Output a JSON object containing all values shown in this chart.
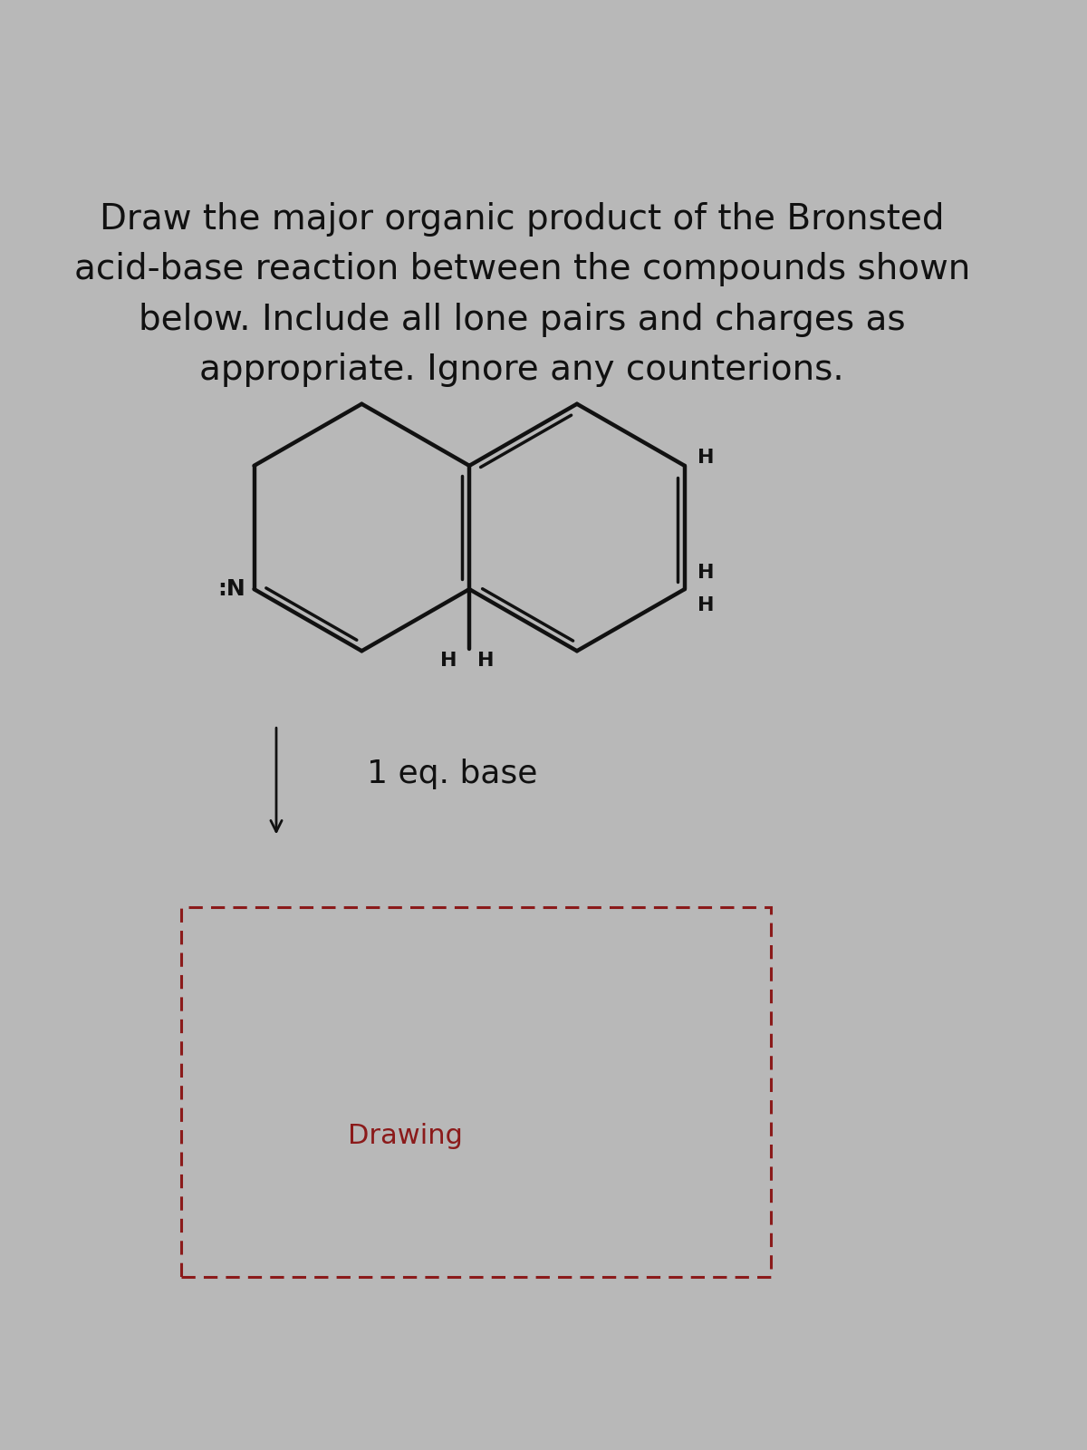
{
  "title_lines": [
    "Draw the major organic product of the Bronsted",
    "acid-base reaction between the compounds shown",
    "below. Include all lone pairs and charges as",
    "appropriate. Ignore any counterions."
  ],
  "title_fontsize": 28,
  "bg_color": "#b8b8b8",
  "molecule_color": "#111111",
  "arrow_color": "#111111",
  "base_text": "1 eq. base",
  "base_fontsize": 26,
  "drawing_text": "Drawing",
  "drawing_fontsize": 22,
  "drawing_color": "#8B1A1A"
}
